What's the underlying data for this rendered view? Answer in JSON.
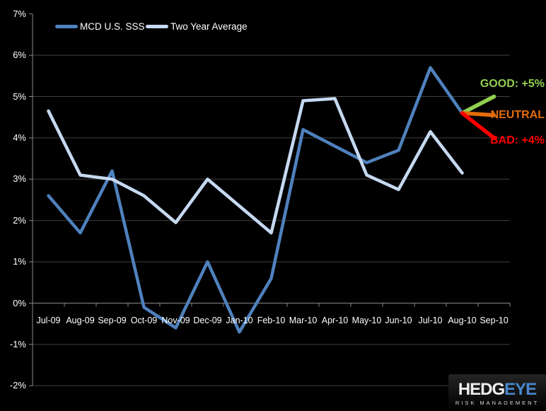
{
  "chart_data": {
    "type": "line",
    "title": "",
    "xlabel": "",
    "ylabel": "",
    "background": "#000000",
    "grid": true,
    "legend_position": "top-left",
    "ylim": [
      -2,
      7
    ],
    "y_ticks": [
      7,
      6,
      5,
      4,
      3,
      2,
      1,
      0,
      -1,
      -2
    ],
    "y_tick_labels": [
      "7%",
      "6%",
      "5%",
      "4%",
      "3%",
      "2%",
      "1%",
      "0%",
      "-1%",
      "-2%"
    ],
    "categories": [
      "Jul-09",
      "Aug-09",
      "Sep-09",
      "Oct-09",
      "Nov-09",
      "Dec-09",
      "Jan-10",
      "Feb-10",
      "Mar-10",
      "Apr-10",
      "May-10",
      "Jun-10",
      "Jul-10",
      "Aug-10",
      "Sep-10"
    ],
    "series": [
      {
        "name": "MCD U.S. SSS",
        "color": "#4F81BD",
        "values": [
          2.6,
          1.7,
          3.2,
          -0.1,
          -0.6,
          1.0,
          -0.7,
          0.6,
          4.2,
          3.8,
          3.4,
          3.7,
          5.7,
          4.6
        ]
      },
      {
        "name": "Two Year Average",
        "color": "#C6D9F1",
        "values": [
          4.65,
          3.1,
          3.0,
          2.6,
          1.95,
          3.0,
          2.35,
          1.7,
          4.9,
          4.95,
          3.1,
          2.75,
          4.15,
          3.15
        ]
      }
    ],
    "projections": [
      {
        "label": "GOOD: +5%",
        "color": "#92D050",
        "from_value": 4.6,
        "to_value": 5.0
      },
      {
        "label": "NEUTRAL",
        "color": "#E36C0A",
        "from_value": 4.6,
        "to_value": 4.55
      },
      {
        "label": "BAD: +4%",
        "color": "#FF0000",
        "from_value": 4.6,
        "to_value": 4.0
      }
    ],
    "axis_color": "#8A8A8A",
    "gridline_color": "#404040",
    "label_color": "#FFFFFF"
  },
  "logo": {
    "brand_primary": "HEDG",
    "brand_accent": "EYE",
    "tagline": "RISK MANAGEMENT"
  }
}
